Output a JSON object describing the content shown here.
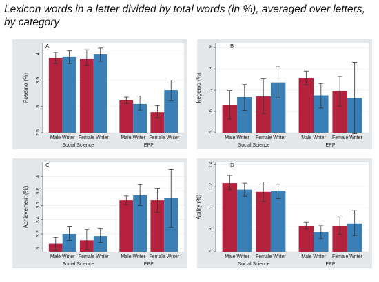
{
  "title": "Lexicon words in a letter divided by total words (in %), averaged over letters, by category",
  "colors": {
    "male": "#b5223d",
    "female": "#3a7fb6",
    "err": "#333333",
    "frame": "#e3e7ea",
    "plotbg": "#ffffff",
    "grid": "#e4e4e4"
  },
  "chart_data": [
    {
      "type": "bar",
      "panel": "A",
      "ylabel": "Posemo (%)",
      "ylim": [
        2.5,
        4.2
      ],
      "yticks": [
        "2.5",
        "3",
        "3.5",
        "4"
      ],
      "tick_values": [
        2.5,
        3,
        3.5,
        4
      ],
      "groups": [
        "Social Science",
        "EPP"
      ],
      "categories": [
        "Male Writer",
        "Female Writer",
        "Male Writer",
        "Female Writer"
      ],
      "series": [
        {
          "values": [
            3.92,
            3.9,
            3.12,
            2.89
          ],
          "err_low": [
            3.82,
            3.78,
            3.06,
            2.78
          ],
          "err_high": [
            4.03,
            4.08,
            3.18,
            3.02
          ]
        },
        {
          "values": [
            3.94,
            3.99,
            3.05,
            3.31
          ],
          "err_low": [
            3.82,
            3.86,
            2.93,
            3.11
          ],
          "err_high": [
            4.06,
            4.11,
            3.2,
            3.5
          ]
        }
      ]
    },
    {
      "type": "bar",
      "panel": "B",
      "ylabel": "Negemo (%)",
      "ylim": [
        0.5,
        0.92
      ],
      "yticks": [
        ".5",
        ".6",
        ".7",
        ".8",
        ".9"
      ],
      "tick_values": [
        0.5,
        0.6,
        0.7,
        0.8,
        0.9
      ],
      "groups": [
        "Social Science",
        "EPP"
      ],
      "categories": [
        "Male Writer",
        "Female Writer",
        "Male Writer",
        "Female Writer"
      ],
      "series": [
        {
          "values": [
            0.632,
            0.671,
            0.757,
            0.695
          ],
          "err_low": [
            0.565,
            0.59,
            0.725,
            0.625
          ],
          "err_high": [
            0.698,
            0.753,
            0.79,
            0.765
          ]
        },
        {
          "values": [
            0.668,
            0.737,
            0.676,
            0.663
          ],
          "err_low": [
            0.605,
            0.665,
            0.617,
            0.495
          ],
          "err_high": [
            0.727,
            0.81,
            0.732,
            0.831
          ]
        }
      ]
    },
    {
      "type": "bar",
      "panel": "C",
      "ylabel": "Achievement (%)",
      "ylim": [
        2.95,
        4.2
      ],
      "yticks": [
        "3",
        "3.2",
        "3.4",
        "3.6",
        "3.8",
        "4"
      ],
      "tick_values": [
        3,
        3.2,
        3.4,
        3.6,
        3.8,
        4
      ],
      "groups": [
        "Social Science",
        "EPP"
      ],
      "categories": [
        "Male Writer",
        "Female Writer",
        "Male Writer",
        "Female Writer"
      ],
      "series": [
        {
          "values": [
            3.06,
            3.11,
            3.67,
            3.67
          ],
          "err_low": [
            2.97,
            2.98,
            3.61,
            3.5
          ],
          "err_high": [
            3.15,
            3.26,
            3.73,
            3.83
          ]
        },
        {
          "values": [
            3.2,
            3.17,
            3.74,
            3.7
          ],
          "err_low": [
            3.11,
            3.08,
            3.6,
            3.29
          ],
          "err_high": [
            3.3,
            3.27,
            3.89,
            4.1
          ]
        }
      ]
    },
    {
      "type": "bar",
      "panel": "D",
      "ylabel": "Ability (%)",
      "ylim": [
        0.6,
        1.42
      ],
      "yticks": [
        ".6",
        ".8",
        "1",
        "1.2",
        "1.4"
      ],
      "tick_values": [
        0.6,
        0.8,
        1.0,
        1.2,
        1.4
      ],
      "groups": [
        "Social Science",
        "EPP"
      ],
      "categories": [
        "Male Writer",
        "Female Writer",
        "Male Writer",
        "Female Writer"
      ],
      "series": [
        {
          "values": [
            1.23,
            1.15,
            0.84,
            0.84
          ],
          "err_low": [
            1.17,
            1.06,
            0.81,
            0.76
          ],
          "err_high": [
            1.3,
            1.24,
            0.87,
            0.92
          ]
        },
        {
          "values": [
            1.17,
            1.16,
            0.78,
            0.86
          ],
          "err_low": [
            1.11,
            1.09,
            0.72,
            0.75
          ],
          "err_high": [
            1.23,
            1.22,
            0.84,
            0.98
          ]
        }
      ]
    }
  ]
}
